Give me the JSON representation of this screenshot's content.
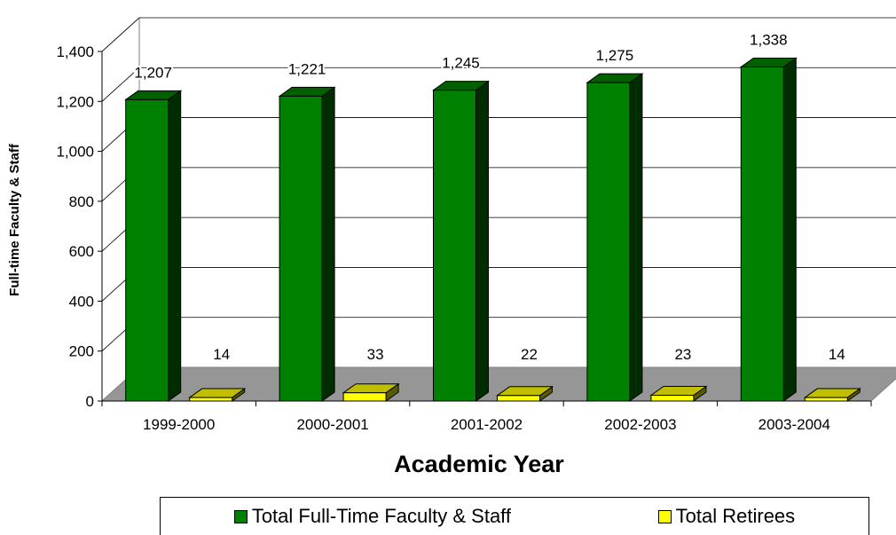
{
  "chart_data": {
    "type": "bar",
    "categories": [
      "1999-2000",
      "2000-2001",
      "2001-2002",
      "2002-2003",
      "2003-2004"
    ],
    "series": [
      {
        "name": "Total Full-Time Faculty & Staff",
        "values": [
          1207,
          1221,
          1245,
          1275,
          1338
        ],
        "color": "#008000"
      },
      {
        "name": "Total Retirees",
        "values": [
          14,
          33,
          22,
          23,
          14
        ],
        "color": "#ffff00"
      }
    ],
    "value_labels": [
      [
        "1,207",
        "1,221",
        "1,245",
        "1,275",
        "1,338"
      ],
      [
        "14",
        "33",
        "22",
        "23",
        "14"
      ]
    ],
    "yticks": [
      "0",
      "200",
      "400",
      "600",
      "800",
      "1,000",
      "1,200",
      "1,400"
    ],
    "ylim": [
      0,
      1400
    ],
    "xlabel": "Academic Year",
    "ylabel": "Full-time Faculty & Staff",
    "legend_position": "bottom",
    "grid": true,
    "style": "3d-column"
  }
}
